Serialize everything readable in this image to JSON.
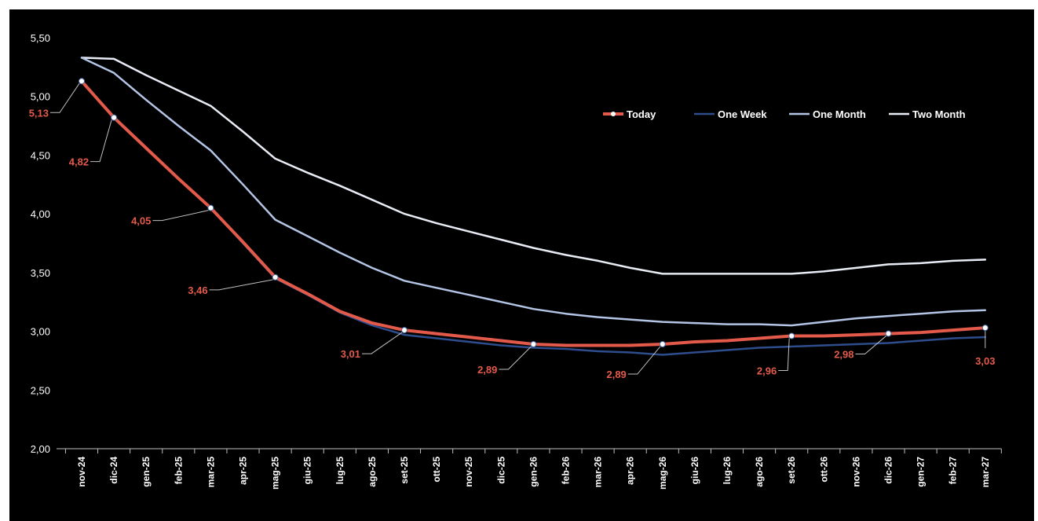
{
  "chart_data": {
    "type": "line",
    "categories": [
      "nov-24",
      "dic-24",
      "gen-25",
      "feb-25",
      "mar-25",
      "apr-25",
      "mag-25",
      "giu-25",
      "lug-25",
      "ago-25",
      "set-25",
      "ott-25",
      "nov-25",
      "dic-25",
      "gen-26",
      "feb-26",
      "mar-26",
      "apr-26",
      "mag-26",
      "giu-26",
      "lug-26",
      "ago-26",
      "set-26",
      "ott-26",
      "nov-26",
      "dic-26",
      "gen-27",
      "feb-27",
      "mar-27"
    ],
    "ylim": [
      2.0,
      5.5
    ],
    "yticks": [
      "5,50",
      "5,00",
      "4,50",
      "4,00",
      "3,50",
      "3,00",
      "2,50",
      "2,00"
    ],
    "ytick_values": [
      5.5,
      5.0,
      4.5,
      4.0,
      3.5,
      3.0,
      2.5,
      2.0
    ],
    "grid": false,
    "legend_position": "top-right",
    "series": [
      {
        "name": "Two Month",
        "color": "#e8ecf4",
        "values": [
          5.33,
          5.32,
          5.18,
          5.05,
          4.92,
          4.7,
          4.47,
          4.35,
          4.24,
          4.12,
          4.0,
          3.92,
          3.85,
          3.78,
          3.71,
          3.65,
          3.6,
          3.54,
          3.49,
          3.49,
          3.49,
          3.49,
          3.49,
          3.51,
          3.54,
          3.57,
          3.58,
          3.6,
          3.61
        ]
      },
      {
        "name": "One Month",
        "color": "#b4c4e4",
        "values": [
          5.33,
          5.2,
          4.97,
          4.75,
          4.54,
          4.25,
          3.95,
          3.81,
          3.67,
          3.54,
          3.43,
          3.37,
          3.31,
          3.25,
          3.19,
          3.15,
          3.12,
          3.1,
          3.08,
          3.07,
          3.06,
          3.06,
          3.05,
          3.08,
          3.11,
          3.13,
          3.15,
          3.17,
          3.18
        ]
      },
      {
        "name": "One Week",
        "color": "#2e4d8c",
        "values": [
          5.13,
          4.82,
          4.56,
          4.3,
          4.05,
          3.75,
          3.45,
          3.31,
          3.16,
          3.05,
          2.97,
          2.94,
          2.91,
          2.88,
          2.86,
          2.85,
          2.83,
          2.82,
          2.8,
          2.82,
          2.84,
          2.86,
          2.87,
          2.88,
          2.89,
          2.9,
          2.92,
          2.94,
          2.95
        ]
      },
      {
        "name": "Today",
        "color": "#e35a4a",
        "values": [
          5.13,
          4.82,
          4.56,
          4.3,
          4.05,
          3.76,
          3.46,
          3.32,
          3.17,
          3.07,
          3.01,
          2.98,
          2.95,
          2.92,
          2.89,
          2.88,
          2.88,
          2.88,
          2.89,
          2.91,
          2.92,
          2.94,
          2.96,
          2.96,
          2.97,
          2.98,
          2.99,
          3.01,
          3.03
        ]
      }
    ],
    "data_labels": [
      {
        "index": 0,
        "text": "5,13",
        "value": 5.13
      },
      {
        "index": 1,
        "text": "4,82",
        "value": 4.82
      },
      {
        "index": 4,
        "text": "4,05",
        "value": 4.05
      },
      {
        "index": 6,
        "text": "3,46",
        "value": 3.46
      },
      {
        "index": 10,
        "text": "3,01",
        "value": 3.01
      },
      {
        "index": 14,
        "text": "2,89",
        "value": 2.89
      },
      {
        "index": 18,
        "text": "2,89",
        "value": 2.89
      },
      {
        "index": 22,
        "text": "2,96",
        "value": 2.96
      },
      {
        "index": 25,
        "text": "2,98",
        "value": 2.98
      },
      {
        "index": 28,
        "text": "3,03",
        "value": 3.03
      }
    ],
    "legend_order": [
      "Today",
      "One Week",
      "One Month",
      "Two Month"
    ]
  }
}
